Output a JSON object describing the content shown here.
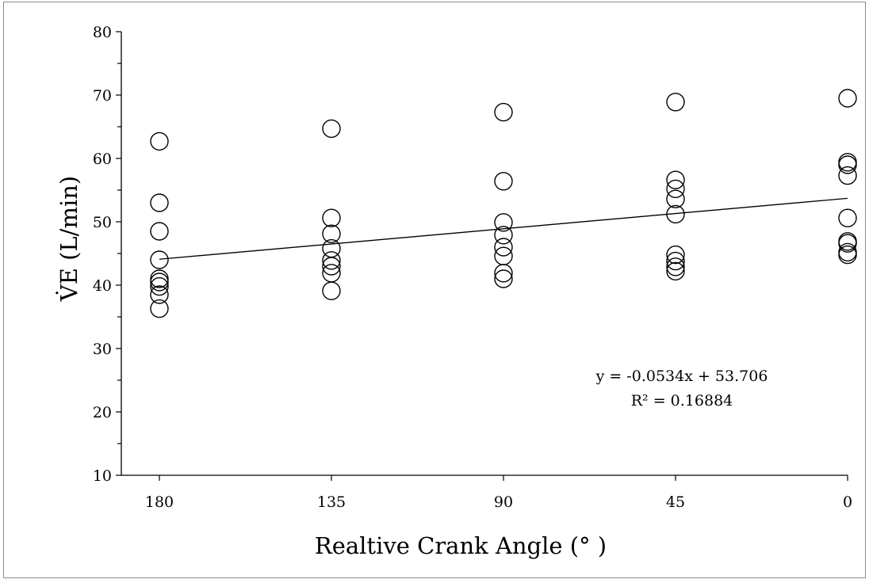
{
  "chart_data": {
    "type": "scatter",
    "title": "",
    "xlabel": "Realtive Crank Angle (° )",
    "ylabel": "V̇E (L/min)",
    "x_reversed": true,
    "xlim": [
      180,
      0
    ],
    "ylim": [
      10,
      80
    ],
    "xticks": [
      "180",
      "135",
      "90",
      "45",
      "0"
    ],
    "yticks": [
      "10",
      "20",
      "30",
      "40",
      "50",
      "60",
      "70",
      "80"
    ],
    "grid": false,
    "legend": "none",
    "marker": "open-circle",
    "points": [
      {
        "x": 180,
        "y": 62.7
      },
      {
        "x": 180,
        "y": 53.0
      },
      {
        "x": 180,
        "y": 48.5
      },
      {
        "x": 180,
        "y": 44.0
      },
      {
        "x": 180,
        "y": 41.0
      },
      {
        "x": 180,
        "y": 40.5
      },
      {
        "x": 180,
        "y": 39.8
      },
      {
        "x": 180,
        "y": 38.5
      },
      {
        "x": 180,
        "y": 36.3
      },
      {
        "x": 135,
        "y": 64.7
      },
      {
        "x": 135,
        "y": 50.6
      },
      {
        "x": 135,
        "y": 48.1
      },
      {
        "x": 135,
        "y": 45.8
      },
      {
        "x": 135,
        "y": 43.9
      },
      {
        "x": 135,
        "y": 43.0
      },
      {
        "x": 135,
        "y": 41.9
      },
      {
        "x": 135,
        "y": 39.1
      },
      {
        "x": 90,
        "y": 67.3
      },
      {
        "x": 90,
        "y": 56.4
      },
      {
        "x": 90,
        "y": 49.9
      },
      {
        "x": 90,
        "y": 47.9
      },
      {
        "x": 90,
        "y": 46.0
      },
      {
        "x": 90,
        "y": 44.6
      },
      {
        "x": 90,
        "y": 41.9
      },
      {
        "x": 90,
        "y": 41.0
      },
      {
        "x": 45,
        "y": 68.9
      },
      {
        "x": 45,
        "y": 56.6
      },
      {
        "x": 45,
        "y": 55.2
      },
      {
        "x": 45,
        "y": 53.6
      },
      {
        "x": 45,
        "y": 51.2
      },
      {
        "x": 45,
        "y": 44.8
      },
      {
        "x": 45,
        "y": 43.8
      },
      {
        "x": 45,
        "y": 42.9
      },
      {
        "x": 45,
        "y": 42.2
      },
      {
        "x": 0,
        "y": 69.5
      },
      {
        "x": 0,
        "y": 59.4
      },
      {
        "x": 0,
        "y": 59.0
      },
      {
        "x": 0,
        "y": 57.3
      },
      {
        "x": 0,
        "y": 50.6
      },
      {
        "x": 0,
        "y": 46.9
      },
      {
        "x": 0,
        "y": 46.6
      },
      {
        "x": 0,
        "y": 45.2
      },
      {
        "x": 0,
        "y": 44.8
      }
    ],
    "trendline": {
      "slope": -0.0534,
      "intercept": 53.706,
      "equation": "y = -0.0534x + 53.706",
      "r2_label": "R² = 0.16884"
    }
  }
}
